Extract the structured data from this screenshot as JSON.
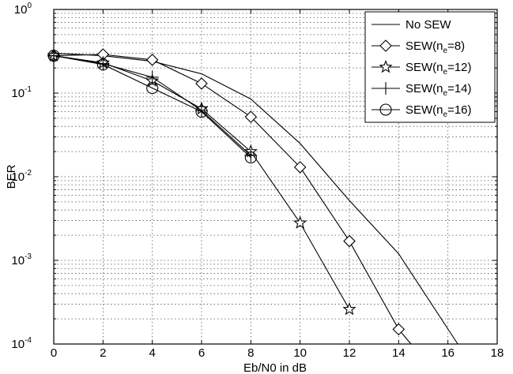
{
  "chart_data": {
    "type": "line",
    "xlabel": "Eb/N0 in dB",
    "ylabel": "BER",
    "xlim": [
      0,
      18
    ],
    "ylim": [
      0.0001,
      1
    ],
    "yscale": "log",
    "x_ticks": [
      "0",
      "2",
      "4",
      "6",
      "8",
      "10",
      "12",
      "14",
      "16",
      "18"
    ],
    "y_ticks": [
      {
        "base": "10",
        "exp": "0",
        "value": 1
      },
      {
        "base": "10",
        "exp": "-1",
        "value": 0.1
      },
      {
        "base": "10",
        "exp": "-2",
        "value": 0.01
      },
      {
        "base": "10",
        "exp": "-3",
        "value": 0.001
      },
      {
        "base": "10",
        "exp": "-4",
        "value": 0.0001
      }
    ],
    "grid": true,
    "legend_position": "top-right",
    "series": [
      {
        "name": "No SEW",
        "marker": "none",
        "x": [
          0,
          2,
          4,
          6,
          8,
          10,
          12,
          14,
          16.4
        ],
        "y": [
          0.3,
          0.28,
          0.24,
          0.17,
          0.085,
          0.025,
          0.0052,
          0.0012,
          0.0001
        ]
      },
      {
        "name": "SEW(n_e=8)",
        "label_main": "SEW(n",
        "label_sub": "e",
        "label_tail": "=8)",
        "marker": "diamond",
        "x": [
          0,
          2,
          4,
          6,
          8,
          10,
          12,
          14,
          14.5
        ],
        "y": [
          0.28,
          0.29,
          0.25,
          0.13,
          0.052,
          0.013,
          0.0017,
          0.00015,
          0.0001
        ]
      },
      {
        "name": "SEW(n_e=12)",
        "label_main": "SEW(n",
        "label_sub": "e",
        "label_tail": "=12)",
        "marker": "star",
        "x": [
          0,
          2,
          4,
          6,
          8,
          10,
          12
        ],
        "y": [
          0.28,
          0.23,
          0.14,
          0.065,
          0.02,
          0.0028,
          0.00026
        ]
      },
      {
        "name": "SEW(n_e=14)",
        "label_main": "SEW(n",
        "label_sub": "e",
        "label_tail": "=14)",
        "marker": "plus",
        "x": [
          0,
          2,
          4,
          6,
          8
        ],
        "y": [
          0.28,
          0.225,
          0.155,
          0.062,
          0.018
        ]
      },
      {
        "name": "SEW(n_e=16)",
        "label_main": "SEW(n",
        "label_sub": "e",
        "label_tail": "=16)",
        "marker": "circle",
        "x": [
          0,
          2,
          4,
          6,
          8
        ],
        "y": [
          0.28,
          0.22,
          0.115,
          0.06,
          0.017
        ]
      }
    ]
  }
}
